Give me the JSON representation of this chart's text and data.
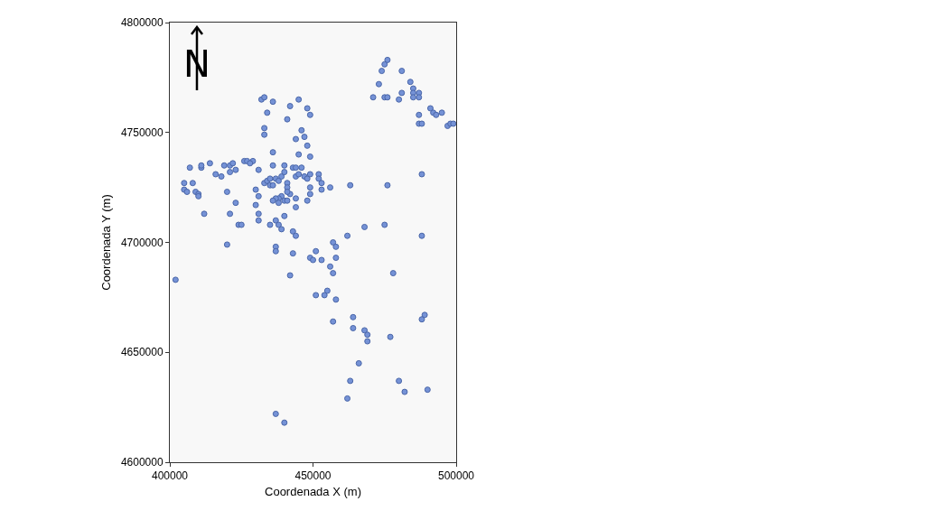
{
  "chart_data": {
    "type": "scatter",
    "xlabel": "Coordenada X (m)",
    "ylabel": "Coordenada Y (m)",
    "xlim": [
      400000,
      500000
    ],
    "xticks": [
      400000,
      450000,
      500000
    ],
    "ylim": [
      4600000,
      4800000
    ],
    "yticks": [
      4600000,
      4650000,
      4700000,
      4750000,
      4800000
    ],
    "grid": false,
    "marker": "circle",
    "annotations": [
      "N"
    ],
    "series": [
      {
        "color": "#7592d6",
        "x": [
          476000,
          475000,
          474000,
          481000,
          473000,
          471000,
          475000,
          476000,
          480000,
          481000,
          484000,
          485000,
          485000,
          485000,
          487000,
          487000,
          487000,
          487000,
          488000,
          491000,
          492000,
          493000,
          495000,
          497000,
          498000,
          499000,
          488000,
          463000,
          476000,
          432000,
          433000,
          436000,
          445000,
          442000,
          448000,
          449000,
          434000,
          441000,
          433000,
          433000,
          446000,
          444000,
          447000,
          448000,
          436000,
          445000,
          449000,
          407000,
          411000,
          411000,
          414000,
          419000,
          421000,
          422000,
          426000,
          427000,
          429000,
          428000,
          431000,
          436000,
          440000,
          443000,
          444000,
          446000,
          421000,
          423000,
          416000,
          418000,
          405000,
          405000,
          406000,
          408000,
          409000,
          410000,
          410000,
          420000,
          423000,
          412000,
          421000,
          424000,
          425000,
          430000,
          431000,
          430000,
          431000,
          431000,
          435000,
          437000,
          433000,
          434000,
          435000,
          437000,
          435000,
          436000,
          438000,
          439000,
          440000,
          441000,
          441000,
          442000,
          441000,
          439000,
          438000,
          437000,
          436000,
          438000,
          440000,
          441000,
          444000,
          444000,
          444000,
          445000,
          447000,
          448000,
          449000,
          452000,
          452000,
          453000,
          453000,
          456000,
          449000,
          449000,
          448000,
          440000,
          438000,
          439000,
          443000,
          444000,
          420000,
          437000,
          457000,
          458000,
          402000,
          437000,
          443000,
          451000,
          449000,
          450000,
          453000,
          462000,
          458000,
          456000,
          457000,
          442000,
          451000,
          454000,
          455000,
          458000,
          478000,
          488000,
          457000,
          464000,
          464000,
          468000,
          469000,
          469000,
          477000,
          489000,
          488000,
          466000,
          463000,
          462000,
          480000,
          482000,
          490000,
          437000,
          440000,
          475000,
          468000
        ],
        "values": [
          4783000,
          4781000,
          4778000,
          4778000,
          4772000,
          4766000,
          4766000,
          4766000,
          4765000,
          4768000,
          4773000,
          4770000,
          4768000,
          4766000,
          4768000,
          4766000,
          4758000,
          4754000,
          4754000,
          4761000,
          4759000,
          4758000,
          4759000,
          4753000,
          4754000,
          4754000,
          4731000,
          4726000,
          4726000,
          4765000,
          4766000,
          4764000,
          4765000,
          4762000,
          4761000,
          4758000,
          4759000,
          4756000,
          4752000,
          4749000,
          4751000,
          4747000,
          4748000,
          4744000,
          4741000,
          4740000,
          4739000,
          4734000,
          4734000,
          4735000,
          4736000,
          4735000,
          4735000,
          4736000,
          4737000,
          4737000,
          4737000,
          4736000,
          4733000,
          4735000,
          4735000,
          4734000,
          4734000,
          4734000,
          4732000,
          4733000,
          4731000,
          4730000,
          4727000,
          4724000,
          4723000,
          4727000,
          4723000,
          4722000,
          4721000,
          4723000,
          4718000,
          4713000,
          4713000,
          4708000,
          4708000,
          4724000,
          4721000,
          4717000,
          4713000,
          4710000,
          4708000,
          4710000,
          4727000,
          4728000,
          4729000,
          4729000,
          4726000,
          4726000,
          4728000,
          4730000,
          4732000,
          4727000,
          4725000,
          4722000,
          4723000,
          4721000,
          4720000,
          4720000,
          4719000,
          4718000,
          4719000,
          4719000,
          4720000,
          4716000,
          4730000,
          4731000,
          4730000,
          4729000,
          4731000,
          4731000,
          4729000,
          4727000,
          4724000,
          4725000,
          4725000,
          4722000,
          4719000,
          4712000,
          4708000,
          4706000,
          4705000,
          4703000,
          4699000,
          4698000,
          4700000,
          4698000,
          4683000,
          4696000,
          4695000,
          4696000,
          4693000,
          4692000,
          4692000,
          4703000,
          4693000,
          4689000,
          4686000,
          4685000,
          4676000,
          4676000,
          4678000,
          4674000,
          4686000,
          4703000,
          4664000,
          4666000,
          4661000,
          4660000,
          4658000,
          4655000,
          4657000,
          4667000,
          4665000,
          4645000,
          4637000,
          4629000,
          4637000,
          4632000,
          4633000,
          4622000,
          4618000,
          4708000,
          4707000
        ]
      }
    ]
  }
}
